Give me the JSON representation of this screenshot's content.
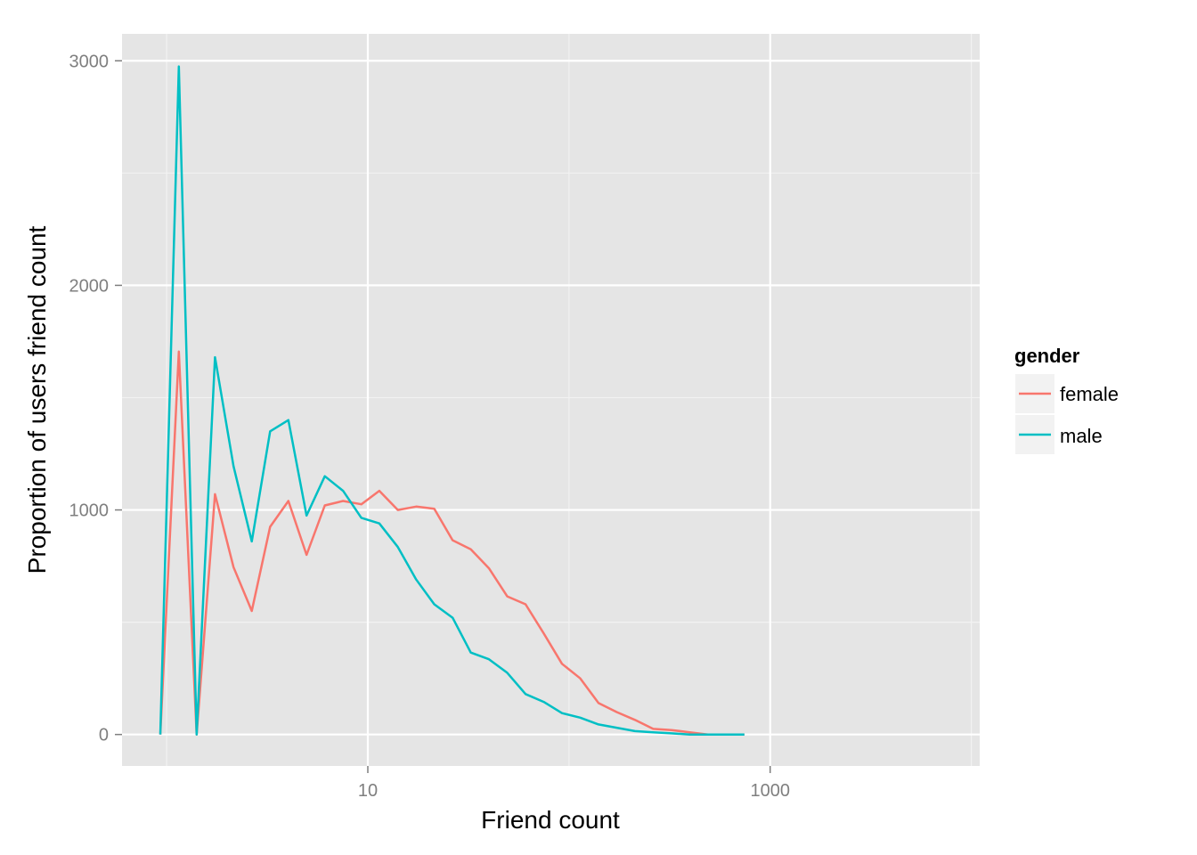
{
  "chart_data": {
    "type": "line",
    "title": "",
    "xlabel": "Friend count",
    "ylabel": "Proportion of users friend count",
    "x_scale": "log10",
    "x_ticks": [
      {
        "value": 10,
        "label": "10"
      },
      {
        "value": 1000,
        "label": "1000"
      }
    ],
    "y_ticks": [
      {
        "value": 0,
        "label": "0"
      },
      {
        "value": 1000,
        "label": "1000"
      },
      {
        "value": 2000,
        "label": "2000"
      },
      {
        "value": 3000,
        "label": "3000"
      }
    ],
    "xlim": [
      0.6,
      11000
    ],
    "ylim": [
      -140,
      3120
    ],
    "grid": true,
    "legend": {
      "title": "gender",
      "position": "right"
    },
    "series": [
      {
        "name": "female",
        "color": "#f8766d",
        "points": [
          [
            0.93,
            0
          ],
          [
            1.15,
            1705
          ],
          [
            1.41,
            0
          ],
          [
            1.74,
            1070
          ],
          [
            2.15,
            745
          ],
          [
            2.65,
            550
          ],
          [
            3.27,
            925
          ],
          [
            4.03,
            1040
          ],
          [
            4.96,
            800
          ],
          [
            6.11,
            1020
          ],
          [
            7.53,
            1040
          ],
          [
            9.28,
            1025
          ],
          [
            11.4,
            1085
          ],
          [
            14.1,
            1000
          ],
          [
            17.4,
            1015
          ],
          [
            21.4,
            1005
          ],
          [
            26.4,
            865
          ],
          [
            32.5,
            825
          ],
          [
            40.0,
            740
          ],
          [
            49.3,
            615
          ],
          [
            60.8,
            580
          ],
          [
            74.9,
            450
          ],
          [
            92.3,
            315
          ],
          [
            113.7,
            250
          ],
          [
            140.1,
            140
          ],
          [
            172.6,
            100
          ],
          [
            212.7,
            65
          ],
          [
            262,
            25
          ],
          [
            323,
            20
          ],
          [
            398,
            10
          ],
          [
            490,
            0
          ],
          [
            604,
            0
          ],
          [
            744,
            0
          ]
        ]
      },
      {
        "name": "male",
        "color": "#00bfc4",
        "points": [
          [
            0.93,
            0
          ],
          [
            1.15,
            2975
          ],
          [
            1.41,
            0
          ],
          [
            1.74,
            1680
          ],
          [
            2.15,
            1195
          ],
          [
            2.65,
            860
          ],
          [
            3.27,
            1350
          ],
          [
            4.03,
            1400
          ],
          [
            4.96,
            975
          ],
          [
            6.11,
            1150
          ],
          [
            7.53,
            1085
          ],
          [
            9.28,
            965
          ],
          [
            11.4,
            940
          ],
          [
            14.1,
            835
          ],
          [
            17.4,
            690
          ],
          [
            21.4,
            580
          ],
          [
            26.4,
            520
          ],
          [
            32.5,
            365
          ],
          [
            40.0,
            335
          ],
          [
            49.3,
            275
          ],
          [
            60.8,
            180
          ],
          [
            74.9,
            145
          ],
          [
            92.3,
            95
          ],
          [
            113.7,
            75
          ],
          [
            140.1,
            45
          ],
          [
            172.6,
            30
          ],
          [
            212.7,
            15
          ],
          [
            262,
            10
          ],
          [
            323,
            5
          ],
          [
            398,
            0
          ],
          [
            490,
            0
          ],
          [
            604,
            0
          ],
          [
            744,
            0
          ]
        ]
      }
    ]
  }
}
